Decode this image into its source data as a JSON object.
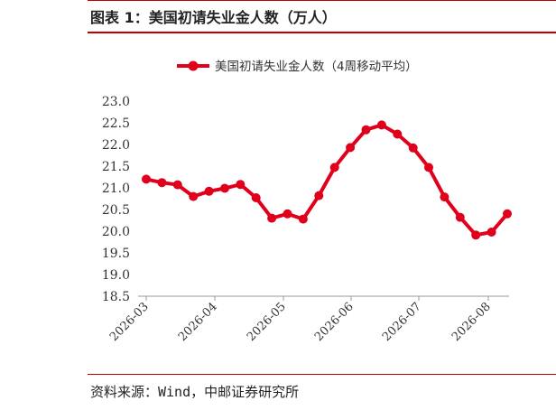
{
  "figure": {
    "title": "图表 1：美国初请失业金人数（万人）",
    "source": "资料来源：Wind，中邮证券研究所"
  },
  "chart_data": {
    "type": "line",
    "legend": {
      "label": "美国初请失业金人数（4周移动平均）",
      "position": "top"
    },
    "x_ticks": [
      "2026-03",
      "2026-04",
      "2026-05",
      "2026-06",
      "2026-07",
      "2026-08"
    ],
    "y_ticks": [
      "18.5",
      "19.0",
      "19.5",
      "20.0",
      "20.5",
      "21.0",
      "21.5",
      "22.0",
      "22.5",
      "23.0"
    ],
    "ylim": [
      18.5,
      23.0
    ],
    "series": [
      {
        "name": "美国初请失业金人数（4周移动平均）",
        "color": "#e0001b",
        "values": [
          21.2,
          21.12,
          21.07,
          20.8,
          20.92,
          20.99,
          21.08,
          20.77,
          20.3,
          20.4,
          20.28,
          20.82,
          21.47,
          21.93,
          22.34,
          22.45,
          22.24,
          21.92,
          21.47,
          20.79,
          20.32,
          19.91,
          19.98,
          20.4
        ]
      }
    ],
    "grid": false
  }
}
